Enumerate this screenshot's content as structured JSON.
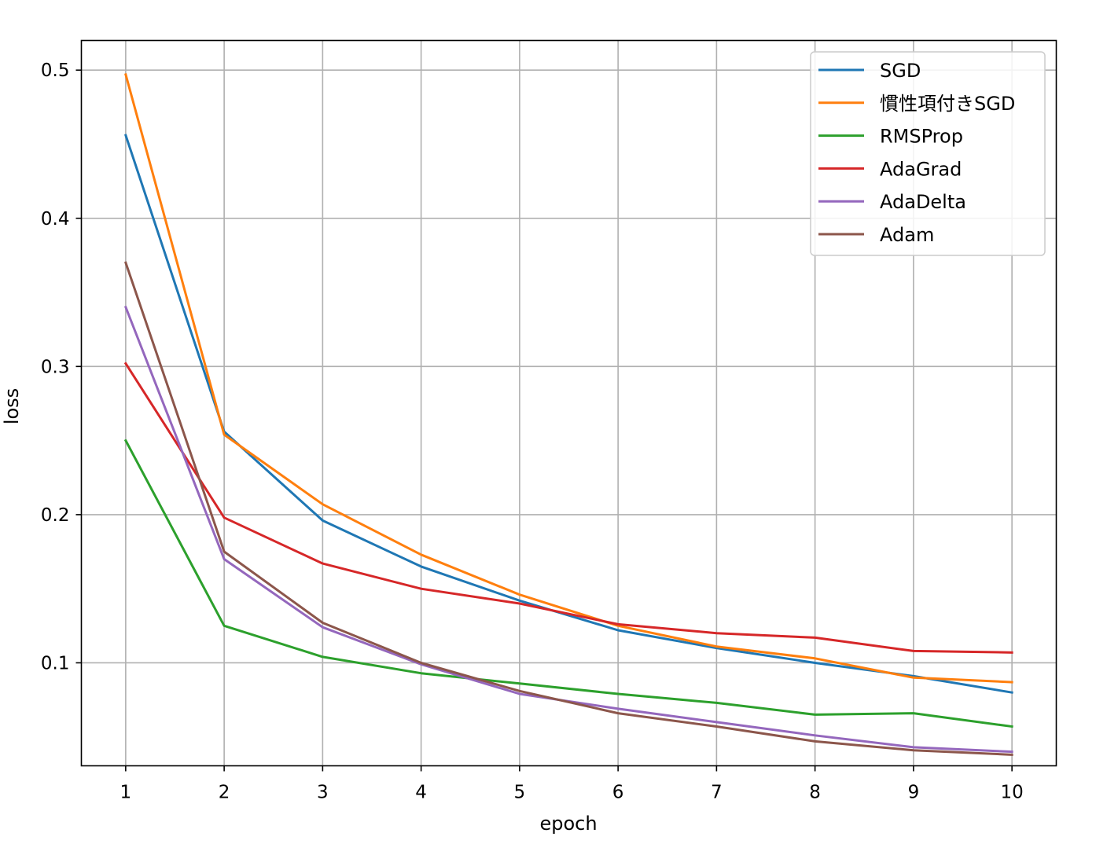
{
  "chart_data": {
    "type": "line",
    "xlabel": "epoch",
    "ylabel": "loss",
    "x": [
      1,
      2,
      3,
      4,
      5,
      6,
      7,
      8,
      9,
      10
    ],
    "xlim": [
      0.55,
      10.45
    ],
    "ylim": [
      0.0305,
      0.52
    ],
    "xticks": [
      "1",
      "2",
      "3",
      "4",
      "5",
      "6",
      "7",
      "8",
      "9",
      "10"
    ],
    "yticks": [
      0.1,
      0.2,
      0.3,
      0.4,
      0.5
    ],
    "ytick_labels": [
      "0.1",
      "0.2",
      "0.3",
      "0.4",
      "0.5"
    ],
    "grid": true,
    "legend_position": "top-right",
    "series": [
      {
        "name": "SGD",
        "color": "#1f77b4",
        "values": [
          0.456,
          0.256,
          0.196,
          0.165,
          0.142,
          0.122,
          0.11,
          0.1,
          0.091,
          0.08
        ]
      },
      {
        "name": "慣性項付きSGD",
        "color": "#ff7f0e",
        "values": [
          0.497,
          0.254,
          0.207,
          0.173,
          0.146,
          0.125,
          0.111,
          0.103,
          0.09,
          0.087
        ]
      },
      {
        "name": "RMSProp",
        "color": "#2ca02c",
        "values": [
          0.25,
          0.125,
          0.104,
          0.093,
          0.086,
          0.079,
          0.073,
          0.065,
          0.066,
          0.057
        ]
      },
      {
        "name": "AdaGrad",
        "color": "#d62728",
        "values": [
          0.302,
          0.198,
          0.167,
          0.15,
          0.14,
          0.126,
          0.12,
          0.117,
          0.108,
          0.107
        ]
      },
      {
        "name": "AdaDelta",
        "color": "#9467bd",
        "values": [
          0.34,
          0.17,
          0.124,
          0.099,
          0.079,
          0.069,
          0.06,
          0.051,
          0.043,
          0.04
        ]
      },
      {
        "name": "Adam",
        "color": "#8c564b",
        "values": [
          0.37,
          0.175,
          0.127,
          0.1,
          0.081,
          0.066,
          0.057,
          0.047,
          0.041,
          0.038
        ]
      }
    ]
  }
}
